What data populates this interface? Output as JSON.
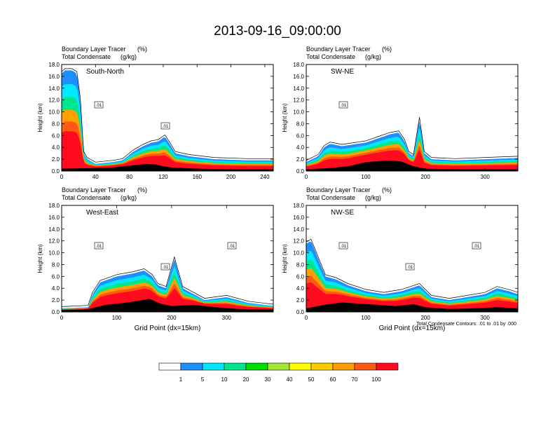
{
  "title": "2013-09-16_09:00:00",
  "colorbar": {
    "colors": [
      "#ffffff",
      "#1f8fff",
      "#00e8ff",
      "#00e68c",
      "#00dd00",
      "#a0e632",
      "#ffff00",
      "#ffcc00",
      "#ffa000",
      "#ff5a14",
      "#ff0a1e"
    ],
    "labels": [
      "1",
      "5",
      "10",
      "20",
      "30",
      "40",
      "50",
      "60",
      "70",
      "100"
    ]
  },
  "footnote": "Total Condensate Contours: .01 to .01 by .000",
  "chart_data": [
    {
      "type": "contour",
      "panel": "South-North",
      "subtitle_left": "Boundary Layer Tracer",
      "subtitle_unit1": "(%)",
      "subtitle_left2": "Total Condensate",
      "subtitle_unit2": "(g/kg)",
      "ylabel": "Height (km)",
      "xlabel": "",
      "xlim": [
        0,
        250
      ],
      "ylim": [
        0,
        18
      ],
      "xticks": [
        0,
        40,
        80,
        120,
        160,
        200,
        240
      ],
      "yticks": [
        0.0,
        2.0,
        4.0,
        6.0,
        8.0,
        10.0,
        12.0,
        14.0,
        16.0,
        18.0
      ],
      "contour_labels": [
        ".01",
        ".01"
      ],
      "terrain": [
        [
          0,
          0.4
        ],
        [
          40,
          0.5
        ],
        [
          60,
          0.6
        ],
        [
          80,
          0.9
        ],
        [
          100,
          1.2
        ],
        [
          112,
          1.1
        ],
        [
          120,
          0.8
        ],
        [
          130,
          0.6
        ],
        [
          160,
          0.4
        ],
        [
          200,
          0.3
        ],
        [
          250,
          0.3
        ]
      ],
      "tracer_top": [
        [
          0,
          16.5
        ],
        [
          4,
          17
        ],
        [
          12,
          17
        ],
        [
          18,
          16.5
        ],
        [
          22,
          12
        ],
        [
          26,
          3
        ],
        [
          30,
          2
        ],
        [
          40,
          1.2
        ],
        [
          60,
          1.5
        ],
        [
          72,
          1.8
        ],
        [
          84,
          3.2
        ],
        [
          96,
          4.2
        ],
        [
          106,
          4.8
        ],
        [
          114,
          5
        ],
        [
          122,
          5.8
        ],
        [
          128,
          4.5
        ],
        [
          134,
          3
        ],
        [
          150,
          2.5
        ],
        [
          180,
          2
        ],
        [
          220,
          1.8
        ],
        [
          250,
          1.8
        ]
      ]
    },
    {
      "type": "contour",
      "panel": "SW-NE",
      "subtitle_left": "Boundary Layer Tracer",
      "subtitle_unit1": "(%)",
      "subtitle_left2": "Total Condensate",
      "subtitle_unit2": "(g/kg)",
      "ylabel": "Height (km)",
      "xlabel": "",
      "xlim": [
        0,
        355
      ],
      "ylim": [
        0,
        18
      ],
      "xticks": [
        0,
        100,
        200,
        300
      ],
      "yticks": [
        0.0,
        2.0,
        4.0,
        6.0,
        8.0,
        10.0,
        12.0,
        14.0,
        16.0,
        18.0
      ],
      "contour_labels": [
        ".01"
      ],
      "terrain": [
        [
          0,
          0.3
        ],
        [
          40,
          0.5
        ],
        [
          70,
          0.8
        ],
        [
          100,
          1.5
        ],
        [
          140,
          1.8
        ],
        [
          160,
          1.6
        ],
        [
          180,
          0.8
        ],
        [
          200,
          0.4
        ],
        [
          260,
          0.3
        ],
        [
          355,
          0.3
        ]
      ],
      "tracer_top": [
        [
          0,
          1.5
        ],
        [
          20,
          2.5
        ],
        [
          30,
          4
        ],
        [
          40,
          4.6
        ],
        [
          60,
          4.2
        ],
        [
          80,
          4.5
        ],
        [
          100,
          4.8
        ],
        [
          120,
          5.5
        ],
        [
          140,
          6.2
        ],
        [
          155,
          6.5
        ],
        [
          165,
          5
        ],
        [
          172,
          3
        ],
        [
          180,
          2.5
        ],
        [
          190,
          8.8
        ],
        [
          198,
          3
        ],
        [
          210,
          2
        ],
        [
          250,
          1.8
        ],
        [
          300,
          2
        ],
        [
          355,
          2.2
        ]
      ]
    },
    {
      "type": "contour",
      "panel": "West-East",
      "subtitle_left": "Boundary Layer Tracer",
      "subtitle_unit1": "(%)",
      "subtitle_left2": "Total Condensate",
      "subtitle_unit2": "(g/kg)",
      "ylabel": "Height (km)",
      "xlabel": "Grid Point (dx=15km)",
      "xlim": [
        0,
        385
      ],
      "ylim": [
        0,
        18
      ],
      "xticks": [
        0,
        100,
        200,
        300
      ],
      "yticks": [
        0.0,
        2.0,
        4.0,
        6.0,
        8.0,
        10.0,
        12.0,
        14.0,
        16.0,
        18.0
      ],
      "contour_labels": [
        ".01",
        ".01",
        ".01"
      ],
      "terrain": [
        [
          0,
          0.3
        ],
        [
          40,
          0.4
        ],
        [
          50,
          0.5
        ],
        [
          80,
          1.2
        ],
        [
          120,
          1.6
        ],
        [
          160,
          2.2
        ],
        [
          180,
          1.4
        ],
        [
          200,
          1.0
        ],
        [
          240,
          1.2
        ],
        [
          280,
          0.8
        ],
        [
          320,
          0.5
        ],
        [
          385,
          0.4
        ]
      ],
      "tracer_top": [
        [
          0,
          0.6
        ],
        [
          48,
          0.8
        ],
        [
          56,
          3
        ],
        [
          70,
          5
        ],
        [
          100,
          6
        ],
        [
          130,
          6.5
        ],
        [
          150,
          7
        ],
        [
          165,
          6
        ],
        [
          175,
          4.5
        ],
        [
          190,
          4
        ],
        [
          205,
          9
        ],
        [
          220,
          4
        ],
        [
          240,
          3
        ],
        [
          260,
          2
        ],
        [
          300,
          2.5
        ],
        [
          340,
          1.5
        ],
        [
          385,
          1
        ]
      ]
    },
    {
      "type": "contour",
      "panel": "NW-SE",
      "subtitle_left": "Boundary Layer Tracer",
      "subtitle_unit1": "(%)",
      "subtitle_left2": "Total Condensate",
      "subtitle_unit2": "(g/kg)",
      "ylabel": "Height (km)",
      "xlabel": "Grid Point (dx=15km)",
      "xlim": [
        0,
        355
      ],
      "ylim": [
        0,
        18
      ],
      "xticks": [
        0,
        100,
        200,
        300
      ],
      "yticks": [
        0.0,
        2.0,
        4.0,
        6.0,
        8.0,
        10.0,
        12.0,
        14.0,
        16.0,
        18.0
      ],
      "contour_labels": [
        ".01",
        ".01",
        ".01"
      ],
      "terrain": [
        [
          0,
          0.6
        ],
        [
          30,
          1.2
        ],
        [
          60,
          1.6
        ],
        [
          90,
          1.4
        ],
        [
          120,
          1.2
        ],
        [
          150,
          1.0
        ],
        [
          180,
          1.3
        ],
        [
          200,
          0.8
        ],
        [
          240,
          0.5
        ],
        [
          280,
          0.6
        ],
        [
          320,
          0.8
        ],
        [
          355,
          0.6
        ]
      ],
      "tracer_top": [
        [
          0,
          11.5
        ],
        [
          8,
          12
        ],
        [
          16,
          10
        ],
        [
          24,
          8
        ],
        [
          32,
          6
        ],
        [
          50,
          5.5
        ],
        [
          70,
          4.5
        ],
        [
          100,
          3.5
        ],
        [
          130,
          3
        ],
        [
          160,
          3.5
        ],
        [
          190,
          4.5
        ],
        [
          210,
          2.5
        ],
        [
          240,
          2
        ],
        [
          270,
          2.5
        ],
        [
          300,
          3
        ],
        [
          320,
          4
        ],
        [
          340,
          3.5
        ],
        [
          355,
          3
        ]
      ]
    }
  ]
}
